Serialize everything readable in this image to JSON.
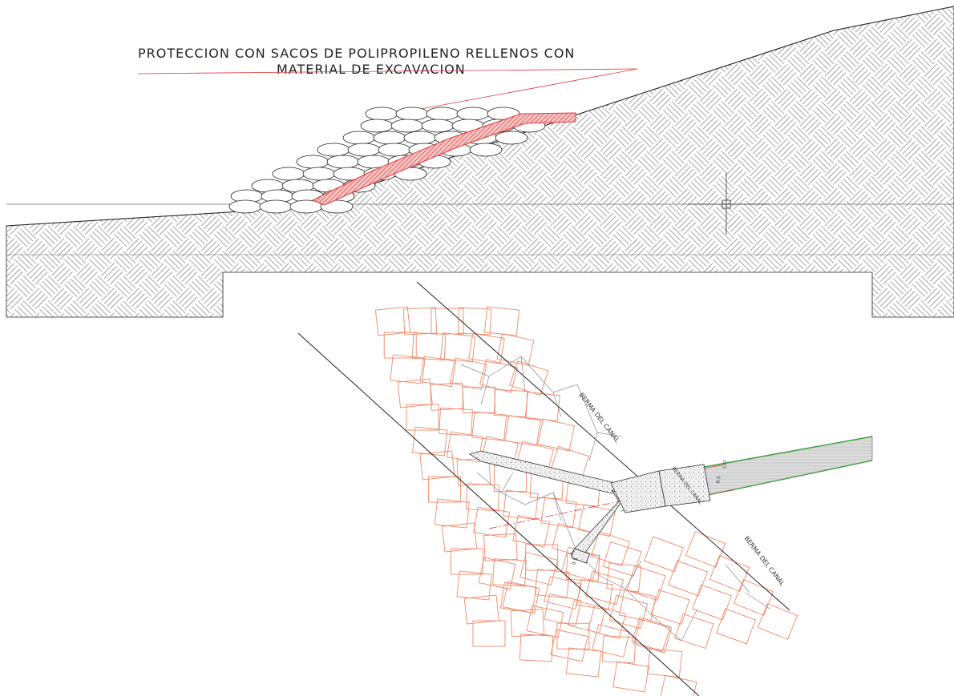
{
  "section": {
    "title_line1": "PROTECCION CON SACOS DE POLIPROPILENO RELLENOS CON",
    "title_line2": "MATERIAL DE EXCAVACION"
  },
  "plan": {
    "berma_label_1": "BERMA DEL CANAL",
    "berma_label_2": "BERMA DEL CANAL",
    "structure_label": "BERMA DEL CANAL",
    "pipe_dim_label": "L.O",
    "pipe_dim_label_2": "0.5",
    "end_label": "0.5"
  },
  "colors": {
    "line": "#222222",
    "hatch": "#8a8a8a",
    "red": "#e23b3b",
    "orange": "#f08a6a",
    "green": "#3a9a3a",
    "concrete": "#9a9a9a"
  }
}
